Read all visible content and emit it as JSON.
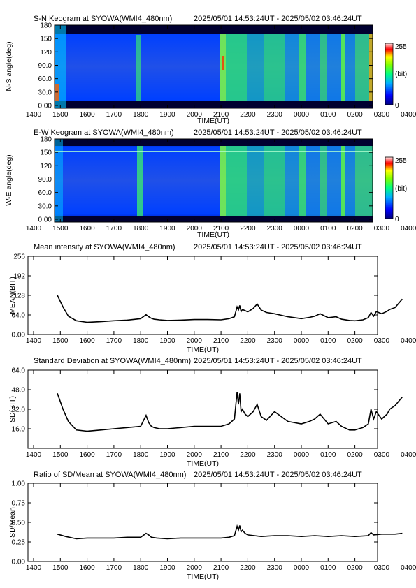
{
  "chart_data": [
    {
      "type": "heatmap",
      "title": "S-N Keogram at SYOWA(WMI4_480nm)",
      "time_range": "2025/05/01 14:53:24UT - 2025/05/02 03:46:24UT",
      "xlabel": "TIME(UT)",
      "ylabel": "N-S angle(deg)",
      "x_ticks": [
        "1400",
        "1500",
        "1600",
        "1700",
        "1800",
        "1900",
        "2000",
        "2100",
        "2200",
        "2300",
        "0000",
        "0100",
        "0200",
        "0300",
        "0400"
      ],
      "y_ticks": [
        "0.00",
        "30.0",
        "60.0",
        "90.0",
        "120",
        "150",
        "180"
      ],
      "ylim": [
        0,
        180
      ],
      "colorbar": {
        "min": "0",
        "max": "255",
        "unit": "(bit)"
      }
    },
    {
      "type": "heatmap",
      "title": "E-W Keogram at SYOWA(WMI4_480nm)",
      "time_range": "2025/05/01 14:53:24UT - 2025/05/02 03:46:24UT",
      "xlabel": "TIME(UT)",
      "ylabel": "W-E angle(deg)",
      "x_ticks": [
        "1400",
        "1500",
        "1600",
        "1700",
        "1800",
        "1900",
        "2000",
        "2100",
        "2200",
        "2300",
        "0000",
        "0100",
        "0200",
        "0300",
        "0400"
      ],
      "y_ticks": [
        "0.00",
        "30.0",
        "60.0",
        "90.0",
        "120",
        "150",
        "180"
      ],
      "ylim": [
        0,
        180
      ],
      "colorbar": {
        "min": "0",
        "max": "255",
        "unit": "(bit)"
      }
    },
    {
      "type": "line",
      "title": "Mean intensity at SYOWA(WMI4_480nm)",
      "time_range": "2025/05/01 14:53:24UT - 2025/05/02 03:46:24UT",
      "xlabel": "TIME(UT)",
      "ylabel": "MEAN(BIT)",
      "x_ticks": [
        "1400",
        "1500",
        "1600",
        "1700",
        "1800",
        "1900",
        "2000",
        "2100",
        "2200",
        "2300",
        "0000",
        "0100",
        "0200",
        "0300",
        "0400"
      ],
      "y_ticks": [
        "0.00",
        "64.0",
        "128",
        "192",
        "256"
      ],
      "ylim": [
        0,
        256
      ],
      "series": [
        {
          "x": [
            14.89,
            15.1,
            15.3,
            15.6,
            16.0,
            16.5,
            17.0,
            17.5,
            18.0,
            18.2,
            18.3,
            18.4,
            18.5,
            18.7,
            19.0,
            19.5,
            20.0,
            20.5,
            21.0,
            21.3,
            21.5,
            21.6,
            21.65,
            21.7,
            21.75,
            21.8,
            21.9,
            22.0,
            22.2,
            22.35,
            22.5,
            22.7,
            23.0,
            23.5,
            24.0,
            24.3,
            24.5,
            24.7,
            25.0,
            25.3,
            25.5,
            25.8,
            26.0,
            26.3,
            26.5,
            26.6,
            26.7,
            26.8,
            27.0,
            27.2,
            27.3,
            27.5,
            27.77
          ],
          "y": [
            128,
            90,
            60,
            45,
            40,
            42,
            45,
            47,
            52,
            65,
            58,
            53,
            50,
            48,
            46,
            47,
            49,
            49,
            48,
            52,
            58,
            90,
            80,
            95,
            75,
            82,
            78,
            74,
            85,
            100,
            80,
            72,
            68,
            58,
            52,
            56,
            60,
            68,
            55,
            58,
            50,
            46,
            45,
            48,
            55,
            72,
            60,
            75,
            68,
            76,
            82,
            88,
            116
          ]
        }
      ]
    },
    {
      "type": "line",
      "title": "Standard Deviation at SYOWA(WMI4_480nm)",
      "time_range": "2025/05/01 14:53:24UT - 2025/05/02 03:46:24UT",
      "xlabel": "TIME(UT)",
      "ylabel": "SD(BIT)",
      "x_ticks": [
        "1400",
        "1500",
        "1600",
        "1700",
        "1800",
        "1900",
        "2000",
        "2100",
        "2200",
        "2300",
        "0000",
        "0100",
        "0200",
        "0300",
        "0400"
      ],
      "y_ticks": [
        "16.0",
        "32.0",
        "48.0",
        "64.0"
      ],
      "ylim": [
        0,
        64
      ],
      "series": [
        {
          "x": [
            14.89,
            15.1,
            15.3,
            15.6,
            16.0,
            16.5,
            17.0,
            17.5,
            18.0,
            18.2,
            18.3,
            18.4,
            18.5,
            18.7,
            19.0,
            19.5,
            20.0,
            20.5,
            21.0,
            21.3,
            21.5,
            21.6,
            21.65,
            21.7,
            21.75,
            21.8,
            21.9,
            22.0,
            22.2,
            22.35,
            22.5,
            22.7,
            23.0,
            23.5,
            24.0,
            24.3,
            24.5,
            24.7,
            25.0,
            25.3,
            25.5,
            25.8,
            26.0,
            26.3,
            26.5,
            26.6,
            26.7,
            26.8,
            27.0,
            27.2,
            27.3,
            27.5,
            27.77
          ],
          "y": [
            45,
            32,
            22,
            15,
            14,
            15,
            16,
            17,
            18,
            27,
            21,
            18,
            17,
            16,
            16,
            17,
            18,
            18,
            18,
            20,
            24,
            46,
            36,
            45,
            30,
            32,
            28,
            26,
            30,
            36,
            26,
            23,
            30,
            22,
            20,
            22,
            24,
            28,
            20,
            22,
            18,
            15,
            15,
            17,
            20,
            32,
            24,
            30,
            24,
            28,
            32,
            35,
            42
          ]
        }
      ]
    },
    {
      "type": "line",
      "title": "Ratio of SD/Mean at SYOWA(WMI4_480nm)",
      "time_range": "2025/05/01 14:53:24UT - 2025/05/02 03:46:24UT",
      "xlabel": "TIME(UT)",
      "ylabel": "SD/Mean",
      "x_ticks": [
        "1400",
        "1500",
        "1600",
        "1700",
        "1800",
        "1900",
        "2000",
        "2100",
        "2200",
        "2300",
        "0000",
        "0100",
        "0200",
        "0300",
        "0400"
      ],
      "y_ticks": [
        "0.00",
        "0.25",
        "0.50",
        "0.75",
        "1.00"
      ],
      "ylim": [
        0,
        1
      ],
      "series": [
        {
          "x": [
            14.89,
            15.2,
            15.6,
            16.0,
            16.5,
            17.0,
            17.5,
            18.0,
            18.2,
            18.3,
            18.4,
            18.6,
            19.0,
            19.5,
            20.0,
            20.5,
            21.0,
            21.3,
            21.5,
            21.6,
            21.65,
            21.7,
            21.75,
            21.8,
            21.9,
            22.0,
            22.5,
            23.0,
            23.5,
            24.0,
            24.5,
            25.0,
            25.5,
            26.0,
            26.5,
            26.6,
            26.7,
            27.0,
            27.5,
            27.77
          ],
          "y": [
            0.35,
            0.32,
            0.29,
            0.3,
            0.3,
            0.3,
            0.31,
            0.31,
            0.36,
            0.34,
            0.31,
            0.3,
            0.29,
            0.3,
            0.3,
            0.3,
            0.3,
            0.31,
            0.33,
            0.45,
            0.4,
            0.46,
            0.38,
            0.4,
            0.36,
            0.34,
            0.32,
            0.33,
            0.33,
            0.32,
            0.33,
            0.32,
            0.33,
            0.32,
            0.33,
            0.37,
            0.34,
            0.35,
            0.35,
            0.36
          ]
        }
      ]
    }
  ]
}
